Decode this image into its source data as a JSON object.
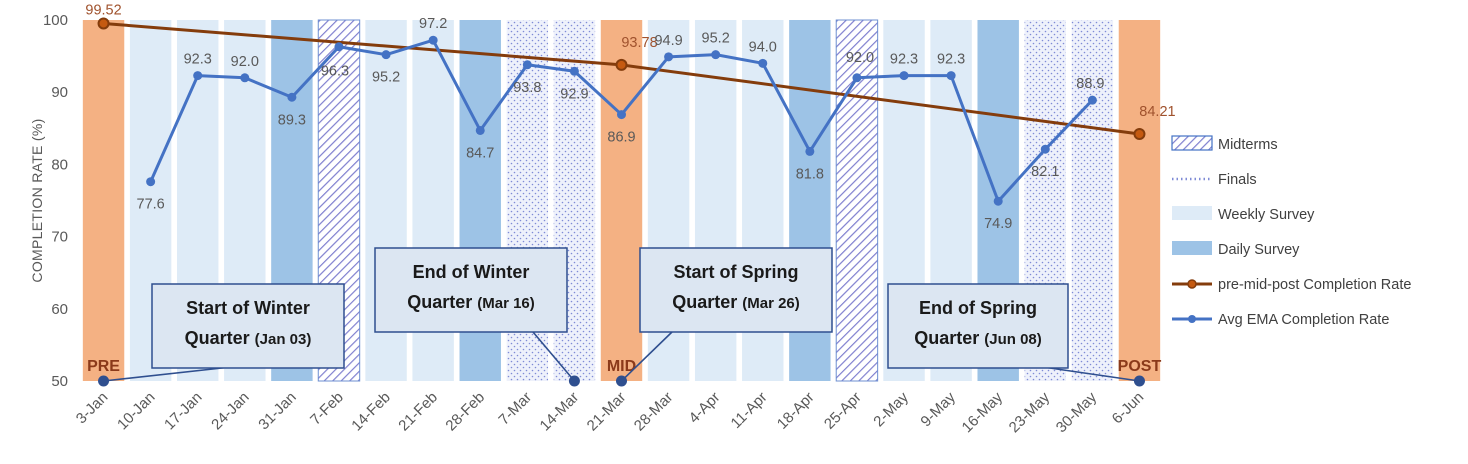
{
  "chart_data": {
    "type": "line",
    "ylabel": "COMPLETION RATE (%)",
    "xlabel": "",
    "ylim": [
      50,
      100
    ],
    "yticks": [
      "50",
      "60",
      "70",
      "80",
      "90",
      "100"
    ],
    "categories": [
      "3-Jan",
      "10-Jan",
      "17-Jan",
      "24-Jan",
      "31-Jan",
      "7-Feb",
      "14-Feb",
      "21-Feb",
      "28-Feb",
      "7-Mar",
      "14-Mar",
      "21-Mar",
      "28-Mar",
      "4-Apr",
      "11-Apr",
      "18-Apr",
      "25-Apr",
      "2-May",
      "9-May",
      "16-May",
      "23-May",
      "30-May",
      "6-Jun"
    ],
    "band_types": [
      "phase",
      "weekly",
      "weekly",
      "weekly",
      "daily",
      "midterms",
      "weekly",
      "weekly",
      "daily",
      "finals",
      "finals",
      "phase",
      "weekly",
      "weekly",
      "weekly",
      "daily",
      "midterms",
      "weekly",
      "weekly",
      "daily",
      "finals",
      "finals",
      "phase"
    ],
    "phase_labels": [
      {
        "index": 0,
        "text": "PRE"
      },
      {
        "index": 11,
        "text": "MID"
      },
      {
        "index": 22,
        "text": "POST"
      }
    ],
    "series": [
      {
        "name": "Avg EMA Completion Rate",
        "color": "#4472c4",
        "values": [
          null,
          77.6,
          92.3,
          92.0,
          89.3,
          96.3,
          95.2,
          97.2,
          84.7,
          93.8,
          92.9,
          86.9,
          94.9,
          95.2,
          94.0,
          81.8,
          92.0,
          92.3,
          92.3,
          74.9,
          82.1,
          88.9,
          null
        ],
        "labels": [
          null,
          "77.6",
          "92.3",
          "92.0",
          "89.3",
          "96.3",
          "95.2",
          "97.2",
          "84.7",
          "93.8",
          "92.9",
          "86.9",
          "94.9",
          "95.2",
          "94.0",
          "81.8",
          "92.0",
          "92.3",
          "92.3",
          "74.9",
          "82.1",
          "88.9",
          null
        ]
      },
      {
        "name": "pre-mid-post Completion Rate",
        "color": "#843c0c",
        "points": [
          {
            "index": 0,
            "value": 99.52,
            "label": "99.52"
          },
          {
            "index": 11,
            "value": 93.78,
            "label": "93.78"
          },
          {
            "index": 22,
            "value": 84.21,
            "label": "84.21"
          }
        ]
      }
    ],
    "legend": {
      "placement": "right",
      "items": [
        {
          "label": "Midterms",
          "kind": "midterms"
        },
        {
          "label": "Finals",
          "kind": "finals"
        },
        {
          "label": "Weekly Survey",
          "kind": "weekly"
        },
        {
          "label": "Daily Survey",
          "kind": "daily"
        },
        {
          "label": "pre-mid-post Completion Rate",
          "kind": "pmp"
        },
        {
          "label": "Avg EMA Completion Rate",
          "kind": "ema"
        }
      ]
    },
    "callouts": [
      {
        "line1": "Start of Winter",
        "line2": "Quarter",
        "date": "(Jan 03)",
        "index": 0
      },
      {
        "line1": "End of Winter",
        "line2": "Quarter",
        "date": "(Mar 16)",
        "index": 10
      },
      {
        "line1": "Start of Spring",
        "line2": "Quarter",
        "date": "(Mar 26)",
        "index": 11
      },
      {
        "line1": "End of Spring",
        "line2": "Quarter",
        "date": "(Jun 08)",
        "index": 22
      }
    ],
    "colors": {
      "phase": "#f4b183",
      "weekly": "#deebf7",
      "daily": "#9dc3e6",
      "midterms": "#8f8fd6",
      "finals": "#aab4e8",
      "ema": "#4472c4",
      "pmp": "#843c0c"
    }
  }
}
